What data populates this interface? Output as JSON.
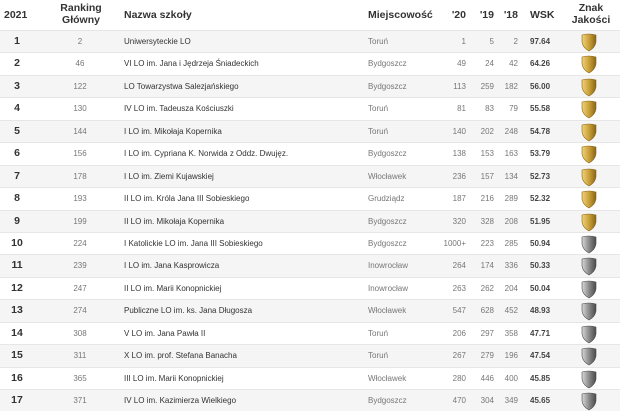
{
  "header": {
    "year": "2021",
    "ranking_l1": "Ranking",
    "ranking_l2": "Główny",
    "name": "Nazwa szkoły",
    "city": "Miejscowość",
    "y20": "'20",
    "y19": "'19",
    "y18": "'18",
    "wsk": "WSK",
    "badge_l1": "Znak",
    "badge_l2": "Jakości"
  },
  "colors": {
    "gold": "#c9a13a",
    "silver": "#8a8a8a",
    "row_alt": "#f5f5f6"
  },
  "rows": [
    {
      "rank": "1",
      "main": "2",
      "name": "Uniwersyteckie LO",
      "city": "Toruń",
      "y20": "1",
      "y19": "5",
      "y18": "2",
      "wsk": "97.64",
      "badge": "gold"
    },
    {
      "rank": "2",
      "main": "46",
      "name": "VI LO im. Jana i Jędrzeja Śniadeckich",
      "city": "Bydgoszcz",
      "y20": "49",
      "y19": "24",
      "y18": "42",
      "wsk": "64.26",
      "badge": "gold"
    },
    {
      "rank": "3",
      "main": "122",
      "name": "LO Towarzystwa Salezjańskiego",
      "city": "Bydgoszcz",
      "y20": "113",
      "y19": "259",
      "y18": "182",
      "wsk": "56.00",
      "badge": "gold"
    },
    {
      "rank": "4",
      "main": "130",
      "name": "IV LO im. Tadeusza Kościuszki",
      "city": "Toruń",
      "y20": "81",
      "y19": "83",
      "y18": "79",
      "wsk": "55.58",
      "badge": "gold"
    },
    {
      "rank": "5",
      "main": "144",
      "name": "I LO im. Mikołaja Kopernika",
      "city": "Toruń",
      "y20": "140",
      "y19": "202",
      "y18": "248",
      "wsk": "54.78",
      "badge": "gold"
    },
    {
      "rank": "6",
      "main": "156",
      "name": "I LO im. Cypriana K. Norwida z Oddz. Dwujęz.",
      "city": "Bydgoszcz",
      "y20": "138",
      "y19": "153",
      "y18": "163",
      "wsk": "53.79",
      "badge": "gold"
    },
    {
      "rank": "7",
      "main": "178",
      "name": "I LO im. Ziemi Kujawskiej",
      "city": "Włocławek",
      "y20": "236",
      "y19": "157",
      "y18": "134",
      "wsk": "52.73",
      "badge": "gold"
    },
    {
      "rank": "8",
      "main": "193",
      "name": "II LO im. Króla Jana III Sobieskiego",
      "city": "Grudziądz",
      "y20": "187",
      "y19": "216",
      "y18": "289",
      "wsk": "52.32",
      "badge": "gold"
    },
    {
      "rank": "9",
      "main": "199",
      "name": "II LO im. Mikołaja Kopernika",
      "city": "Bydgoszcz",
      "y20": "320",
      "y19": "328",
      "y18": "208",
      "wsk": "51.95",
      "badge": "gold"
    },
    {
      "rank": "10",
      "main": "224",
      "name": "I Katolickie LO im. Jana III Sobieskiego",
      "city": "Bydgoszcz",
      "y20": "1000+",
      "y19": "223",
      "y18": "285",
      "wsk": "50.94",
      "badge": "silver"
    },
    {
      "rank": "11",
      "main": "239",
      "name": "I LO im. Jana Kasprowicza",
      "city": "Inowrocław",
      "y20": "264",
      "y19": "174",
      "y18": "336",
      "wsk": "50.33",
      "badge": "silver"
    },
    {
      "rank": "12",
      "main": "247",
      "name": "II LO im. Marii Konopnickiej",
      "city": "Inowrocław",
      "y20": "263",
      "y19": "262",
      "y18": "204",
      "wsk": "50.04",
      "badge": "silver"
    },
    {
      "rank": "13",
      "main": "274",
      "name": "Publiczne LO im. ks. Jana Długosza",
      "city": "Włocławek",
      "y20": "547",
      "y19": "628",
      "y18": "452",
      "wsk": "48.93",
      "badge": "silver"
    },
    {
      "rank": "14",
      "main": "308",
      "name": "V LO im. Jana Pawła II",
      "city": "Toruń",
      "y20": "206",
      "y19": "297",
      "y18": "358",
      "wsk": "47.71",
      "badge": "silver"
    },
    {
      "rank": "15",
      "main": "311",
      "name": "X LO im. prof. Stefana Banacha",
      "city": "Toruń",
      "y20": "267",
      "y19": "279",
      "y18": "196",
      "wsk": "47.54",
      "badge": "silver"
    },
    {
      "rank": "16",
      "main": "365",
      "name": "III LO im. Marii Konopnickiej",
      "city": "Włocławek",
      "y20": "280",
      "y19": "446",
      "y18": "400",
      "wsk": "45.85",
      "badge": "silver"
    },
    {
      "rank": "17",
      "main": "371",
      "name": "IV LO im. Kazimierza Wielkiego",
      "city": "Bydgoszcz",
      "y20": "470",
      "y19": "304",
      "y18": "349",
      "wsk": "45.65",
      "badge": "silver"
    }
  ]
}
